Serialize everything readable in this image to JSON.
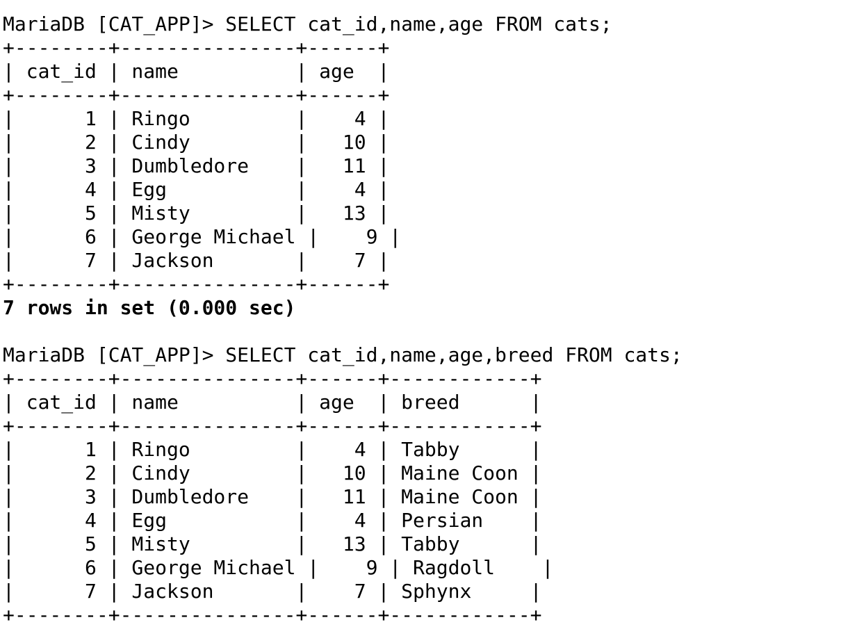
{
  "terminal": {
    "query1": {
      "prompt": "MariaDB [CAT_APP]> SELECT cat_id,name,age FROM cats;",
      "border": "+--------+---------------+------+",
      "header": "| cat_id | name          | age  |",
      "rows": [
        "|      1 | Ringo         |    4 |",
        "|      2 | Cindy         |   10 |",
        "|      3 | Dumbledore    |   11 |",
        "|      4 | Egg           |    4 |",
        "|      5 | Misty         |   13 |",
        "|      6 | George Michael |    9 |",
        "|      7 | Jackson       |    7 |"
      ],
      "status": "7 rows in set (0.000 sec)"
    },
    "query2": {
      "prompt": "MariaDB [CAT_APP]> SELECT cat_id,name,age,breed FROM cats;",
      "border": "+--------+---------------+------+------------+",
      "header": "| cat_id | name          | age  | breed      |",
      "rows": [
        "|      1 | Ringo         |    4 | Tabby      |",
        "|      2 | Cindy         |   10 | Maine Coon |",
        "|      3 | Dumbledore    |   11 | Maine Coon |",
        "|      4 | Egg           |    4 | Persian    |",
        "|      5 | Misty         |   13 | Tabby      |",
        "|      6 | George Michael |    9 | Ragdoll    |",
        "|      7 | Jackson       |    7 | Sphynx     |"
      ]
    }
  },
  "tables": {
    "cats_basic": {
      "columns": [
        "cat_id",
        "name",
        "age"
      ],
      "rows": [
        [
          "1",
          "Ringo",
          "4"
        ],
        [
          "2",
          "Cindy",
          "10"
        ],
        [
          "3",
          "Dumbledore",
          "11"
        ],
        [
          "4",
          "Egg",
          "4"
        ],
        [
          "5",
          "Misty",
          "13"
        ],
        [
          "6",
          "George Michael",
          "9"
        ],
        [
          "7",
          "Jackson",
          "7"
        ]
      ]
    },
    "cats_with_breed": {
      "columns": [
        "cat_id",
        "name",
        "age",
        "breed"
      ],
      "rows": [
        [
          "1",
          "Ringo",
          "4",
          "Tabby"
        ],
        [
          "2",
          "Cindy",
          "10",
          "Maine Coon"
        ],
        [
          "3",
          "Dumbledore",
          "11",
          "Maine Coon"
        ],
        [
          "4",
          "Egg",
          "4",
          "Persian"
        ],
        [
          "5",
          "Misty",
          "13",
          "Tabby"
        ],
        [
          "6",
          "George Michael",
          "9",
          "Ragdoll"
        ],
        [
          "7",
          "Jackson",
          "7",
          "Sphynx"
        ]
      ]
    }
  },
  "colors": {
    "background": "#ffffff",
    "text": "#000000"
  }
}
